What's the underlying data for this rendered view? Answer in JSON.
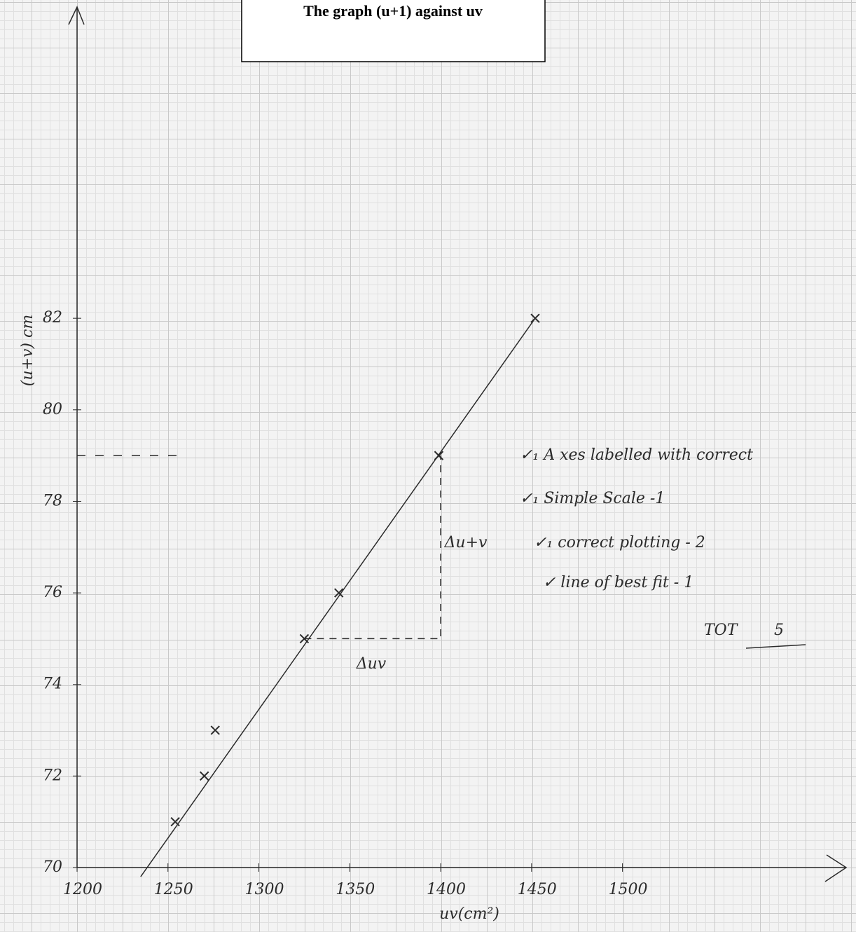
{
  "chart_data": {
    "type": "scatter",
    "title": "The  graph (u+1) against uv",
    "x_label": "uv(cm²)",
    "y_label": "(u+v) cm",
    "xlim": [
      1200,
      1620
    ],
    "ylim": [
      70,
      88.8
    ],
    "xticks": [
      1200,
      1250,
      1300,
      1350,
      1400,
      1450,
      1500
    ],
    "yticks": [
      70,
      72,
      74,
      76,
      78,
      80,
      82
    ],
    "color": "#2b2b2b",
    "x": [
      1254,
      1270,
      1276,
      1325,
      1344,
      1399,
      1452
    ],
    "values": [
      71,
      72,
      73,
      75,
      76,
      79,
      82
    ],
    "fit_line": {
      "x": [
        1235,
        1452
      ],
      "values": [
        69.8,
        82
      ]
    },
    "triangle": {
      "x": [
        1325,
        1400,
        1400
      ],
      "values": [
        75,
        75,
        79
      ]
    },
    "guide": {
      "x": [
        1200,
        1260
      ],
      "values": [
        79,
        79
      ]
    },
    "annotations": [
      "Δuv",
      "Δu+v"
    ],
    "notes": [
      "✓₁ A xes labelled with correct",
      "✓₁ Simple Scale  -1",
      "✓₁ correct plotting - 2",
      "✓ line of best fit - 1",
      "TOT",
      "5"
    ]
  }
}
